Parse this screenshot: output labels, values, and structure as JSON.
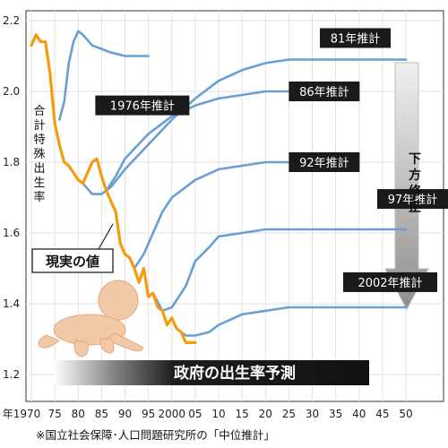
{
  "chart_data": {
    "type": "line",
    "ylabel": "合計特殊出生率",
    "ylim": [
      1.2,
      2.2
    ],
    "xlim": [
      1970,
      2050
    ],
    "y_ticks": [
      "2.2",
      "2.0",
      "1.8",
      "1.6",
      "1.4",
      "1.2"
    ],
    "x_ticks": [
      "年1970",
      "75",
      "80",
      "85",
      "90",
      "95",
      "2000",
      "05",
      "10",
      "15",
      "20",
      "25",
      "30",
      "35",
      "40",
      "45",
      "50"
    ],
    "grid": true,
    "series": [
      {
        "name": "現実の値",
        "color": "#f39c12",
        "x": [
          1970,
          1971,
          1972,
          1973,
          1974,
          1975,
          1976,
          1977,
          1978,
          1979,
          1980,
          1981,
          1982,
          1983,
          1984,
          1985,
          1986,
          1987,
          1988,
          1989,
          1990,
          1991,
          1992,
          1993,
          1994,
          1995,
          1996,
          1997,
          1998,
          1999,
          2000,
          2001,
          2002,
          2003,
          2004,
          2005
        ],
        "values": [
          2.13,
          2.16,
          2.14,
          2.14,
          2.05,
          1.91,
          1.85,
          1.8,
          1.79,
          1.77,
          1.75,
          1.74,
          1.77,
          1.8,
          1.81,
          1.76,
          1.72,
          1.69,
          1.66,
          1.57,
          1.54,
          1.53,
          1.5,
          1.46,
          1.5,
          1.42,
          1.43,
          1.39,
          1.38,
          1.34,
          1.36,
          1.33,
          1.32,
          1.29,
          1.29,
          1.29
        ]
      },
      {
        "name": "1976年推計",
        "color": "#6a9fd4",
        "x": [
          1976,
          1977,
          1978,
          1979,
          1980,
          1981,
          1983,
          1985,
          1987,
          1990,
          1993,
          1995
        ],
        "values": [
          1.92,
          1.97,
          2.08,
          2.14,
          2.17,
          2.16,
          2.13,
          2.12,
          2.11,
          2.1,
          2.1,
          2.1
        ]
      },
      {
        "name": "81年推計",
        "color": "#6a9fd4",
        "x": [
          1981,
          1983,
          1985,
          1987,
          1990,
          1995,
          2000,
          2005,
          2010,
          2015,
          2020,
          2025,
          2030,
          2040,
          2050
        ],
        "values": [
          1.74,
          1.71,
          1.71,
          1.73,
          1.78,
          1.85,
          1.92,
          1.98,
          2.03,
          2.06,
          2.08,
          2.09,
          2.09,
          2.09,
          2.09
        ]
      },
      {
        "name": "86年推計",
        "color": "#6a9fd4",
        "x": [
          1986,
          1988,
          1990,
          1995,
          2000,
          2005,
          2010,
          2015,
          2020,
          2025
        ],
        "values": [
          1.72,
          1.76,
          1.81,
          1.88,
          1.93,
          1.96,
          1.98,
          1.99,
          2.0,
          2.0
        ]
      },
      {
        "name": "92年推計",
        "color": "#6a9fd4",
        "x": [
          1992,
          1994,
          1996,
          1998,
          2000,
          2005,
          2010,
          2015,
          2020,
          2025
        ],
        "values": [
          1.5,
          1.54,
          1.6,
          1.66,
          1.7,
          1.75,
          1.78,
          1.79,
          1.8,
          1.8
        ]
      },
      {
        "name": "97年推計",
        "color": "#6a9fd4",
        "x": [
          1996,
          1998,
          2000,
          2003,
          2005,
          2008,
          2010,
          2015,
          2020,
          2025,
          2030,
          2040,
          2050
        ],
        "values": [
          1.43,
          1.38,
          1.39,
          1.45,
          1.52,
          1.56,
          1.59,
          1.6,
          1.61,
          1.61,
          1.61,
          1.61,
          1.61
        ]
      },
      {
        "name": "2002年推計",
        "color": "#6a9fd4",
        "x": [
          2001,
          2003,
          2005,
          2008,
          2010,
          2015,
          2020,
          2025,
          2030,
          2040,
          2050
        ],
        "values": [
          1.33,
          1.31,
          1.31,
          1.32,
          1.34,
          1.37,
          1.38,
          1.39,
          1.39,
          1.39,
          1.39
        ]
      }
    ],
    "annotations": {
      "actual_label": "現実の値",
      "revision_label": "下方修正",
      "projection_banner": "政府の出生率予測",
      "source_note": "※国立社会保障･人口問題研究所の「中位推計」"
    }
  }
}
